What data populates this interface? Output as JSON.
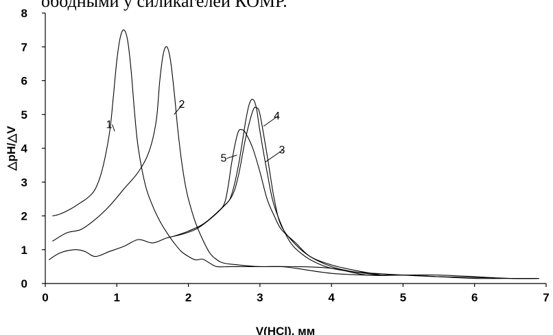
{
  "header_text": "ободными у силикагелей КОМР.",
  "chart_data": {
    "type": "line",
    "title": "",
    "xlabel": "V(HCl), мм",
    "ylabel": "△pH/△V",
    "xlim": [
      0,
      7
    ],
    "ylim": [
      0,
      8
    ],
    "x_ticks": [
      "0",
      "1",
      "2",
      "3",
      "4",
      "5",
      "6",
      "7"
    ],
    "y_ticks": [
      "0",
      "1",
      "2",
      "3",
      "4",
      "5",
      "6",
      "7",
      "8"
    ],
    "grid": false,
    "legend": "none",
    "series": [
      {
        "name": "1",
        "x": [
          0.1,
          0.2,
          0.35,
          0.5,
          0.6,
          0.7,
          0.8,
          0.9,
          0.95,
          1.0,
          1.05,
          1.1,
          1.15,
          1.2,
          1.25,
          1.3,
          1.4,
          1.5,
          1.6,
          1.7,
          1.8,
          1.9,
          2.0,
          2.1,
          2.2,
          2.3,
          2.4,
          2.6,
          3.0,
          3.5,
          4.0,
          4.5,
          5.0,
          5.5,
          6.0,
          6.5,
          6.9
        ],
        "y": [
          2.0,
          2.05,
          2.2,
          2.4,
          2.55,
          2.8,
          3.4,
          4.5,
          5.5,
          6.6,
          7.3,
          7.5,
          7.2,
          6.3,
          5.0,
          4.0,
          2.9,
          2.3,
          1.85,
          1.5,
          1.2,
          0.95,
          0.8,
          0.7,
          0.72,
          0.6,
          0.5,
          0.5,
          0.5,
          0.5,
          0.45,
          0.25,
          0.25,
          0.25,
          0.2,
          0.15,
          0.15
        ]
      },
      {
        "name": "2",
        "x": [
          0.1,
          0.3,
          0.5,
          0.7,
          0.9,
          1.1,
          1.3,
          1.45,
          1.55,
          1.6,
          1.65,
          1.7,
          1.75,
          1.8,
          1.85,
          1.9,
          1.95,
          2.0,
          2.1,
          2.2,
          2.3,
          2.4,
          2.5,
          2.7,
          3.0,
          3.3,
          3.5,
          4.0,
          4.5,
          5.0,
          5.5,
          6.0,
          6.5,
          6.9
        ],
        "y": [
          1.25,
          1.5,
          1.6,
          1.9,
          2.3,
          2.8,
          3.3,
          3.9,
          4.8,
          6.0,
          6.8,
          7.0,
          6.6,
          5.7,
          4.6,
          3.7,
          3.0,
          2.5,
          1.8,
          1.3,
          0.9,
          0.7,
          0.6,
          0.55,
          0.5,
          0.5,
          0.45,
          0.3,
          0.25,
          0.25,
          0.2,
          0.15,
          0.15,
          0.15
        ]
      },
      {
        "name": "3",
        "x": [
          2.0,
          2.2,
          2.4,
          2.6,
          2.7,
          2.8,
          2.9,
          2.95,
          3.0,
          3.1,
          3.2,
          3.3,
          3.5,
          3.7,
          4.0,
          4.3,
          4.7
        ],
        "y": [
          1.55,
          1.75,
          2.1,
          2.55,
          3.2,
          4.3,
          5.1,
          5.2,
          5.0,
          3.8,
          2.5,
          1.7,
          1.15,
          0.8,
          0.5,
          0.35,
          0.25
        ]
      },
      {
        "name": "4",
        "x": [
          0.05,
          0.2,
          0.4,
          0.55,
          0.7,
          0.9,
          1.1,
          1.3,
          1.5,
          1.7,
          1.9,
          2.1,
          2.3,
          2.5,
          2.6,
          2.7,
          2.8,
          2.85,
          2.9,
          2.95,
          3.0,
          3.1,
          3.2,
          3.4,
          3.6,
          3.8,
          4.0,
          4.3,
          4.6,
          5.0,
          5.5,
          6.0,
          6.5,
          6.9
        ],
        "y": [
          0.7,
          0.9,
          1.0,
          0.95,
          0.8,
          0.95,
          1.1,
          1.3,
          1.2,
          1.35,
          1.45,
          1.6,
          1.9,
          2.3,
          2.6,
          3.5,
          4.8,
          5.3,
          5.45,
          5.2,
          4.5,
          3.3,
          2.3,
          1.3,
          0.85,
          0.6,
          0.45,
          0.35,
          0.3,
          0.25,
          0.2,
          0.18,
          0.15,
          0.15
        ]
      },
      {
        "name": "5",
        "x": [
          1.8,
          2.0,
          2.2,
          2.4,
          2.5,
          2.55,
          2.6,
          2.65,
          2.7,
          2.75,
          2.8,
          2.9,
          3.0,
          3.1,
          3.2,
          3.3,
          3.5,
          3.7,
          4.0,
          4.3,
          4.7
        ],
        "y": [
          1.4,
          1.55,
          1.75,
          2.1,
          2.35,
          2.8,
          3.5,
          4.1,
          4.5,
          4.55,
          4.45,
          4.0,
          3.3,
          2.5,
          2.0,
          1.6,
          1.2,
          0.8,
          0.55,
          0.4,
          0.25
        ]
      }
    ],
    "annotations": [
      {
        "text": "1",
        "x": 0.85,
        "y": 4.6,
        "target_x": 0.97,
        "target_y": 4.5
      },
      {
        "text": "2",
        "x": 1.95,
        "y": 5.2,
        "target_x": 1.8,
        "target_y": 5.0
      },
      {
        "text": "3",
        "x": 3.35,
        "y": 3.85,
        "target_x": 3.08,
        "target_y": 3.6
      },
      {
        "text": "4",
        "x": 3.28,
        "y": 4.85,
        "target_x": 3.05,
        "target_y": 4.65
      },
      {
        "text": "5",
        "x": 2.45,
        "y": 3.6,
        "target_x": 2.68,
        "target_y": 3.8
      }
    ]
  }
}
